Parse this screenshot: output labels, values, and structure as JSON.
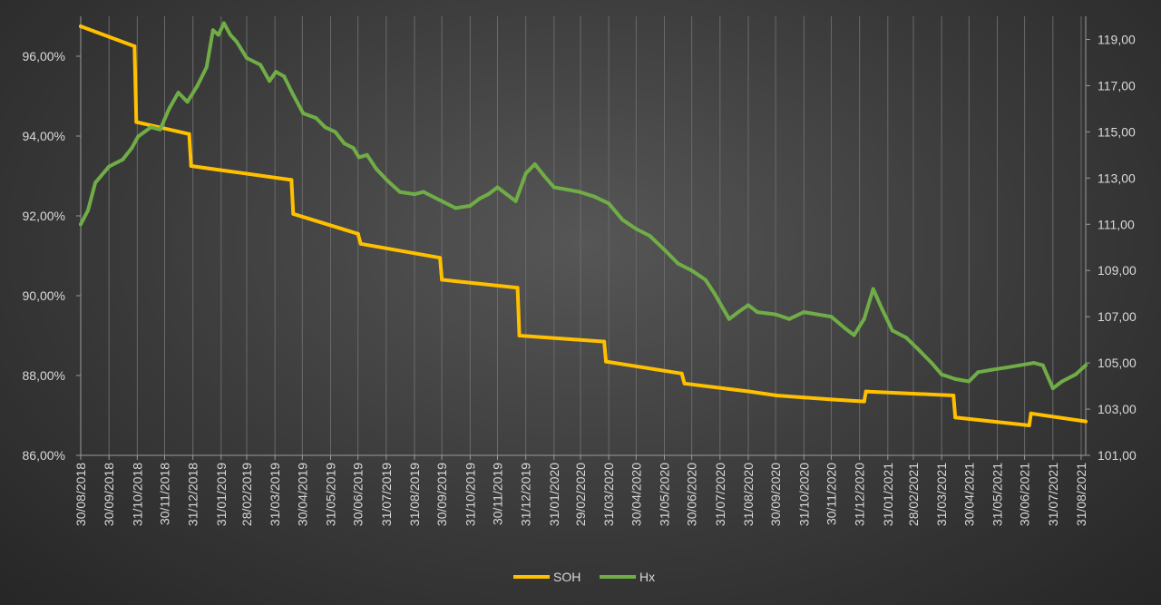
{
  "chart_data": {
    "type": "line",
    "title": "",
    "legend_position": "bottom",
    "grid": "vertical gridlines at each month",
    "x_start": "30/08/2018",
    "x_end": "05/09/2021",
    "x_tick_labels": [
      "30/08/2018",
      "30/09/2018",
      "31/10/2018",
      "30/11/2018",
      "31/12/2018",
      "31/01/2019",
      "28/02/2019",
      "31/03/2019",
      "30/04/2019",
      "31/05/2019",
      "30/06/2019",
      "31/07/2019",
      "31/08/2019",
      "30/09/2019",
      "31/10/2019",
      "30/11/2019",
      "31/12/2019",
      "31/01/2020",
      "29/02/2020",
      "31/03/2020",
      "30/04/2020",
      "31/05/2020",
      "30/06/2020",
      "31/07/2020",
      "31/08/2020",
      "30/09/2020",
      "31/10/2020",
      "30/11/2020",
      "31/12/2020",
      "31/01/2021",
      "28/02/2021",
      "31/03/2021",
      "30/04/2021",
      "31/05/2021",
      "30/06/2021",
      "31/07/2021",
      "31/08/2021"
    ],
    "y_left": {
      "min": 86,
      "max": 97,
      "ticks": [
        86,
        88,
        90,
        92,
        94,
        96
      ],
      "tick_labels": [
        "86,00%",
        "88,00%",
        "90,00%",
        "92,00%",
        "94,00%",
        "96,00%"
      ]
    },
    "y_right": {
      "min": 101,
      "max": 120,
      "ticks": [
        101,
        103,
        105,
        107,
        109,
        111,
        113,
        115,
        117,
        119
      ],
      "tick_labels": [
        "101,00",
        "103,00",
        "105,00",
        "107,00",
        "109,00",
        "111,00",
        "113,00",
        "115,00",
        "117,00",
        "119,00"
      ]
    },
    "series": [
      {
        "name": "SOH",
        "axis": "left",
        "color": "#ffc000",
        "points": [
          [
            "30/08/2018",
            96.75
          ],
          [
            "28/10/2018",
            96.25
          ],
          [
            "30/10/2018",
            94.35
          ],
          [
            "27/12/2018",
            94.05
          ],
          [
            "29/12/2018",
            93.25
          ],
          [
            "18/04/2019",
            92.9
          ],
          [
            "20/04/2019",
            92.05
          ],
          [
            "30/06/2019",
            91.55
          ],
          [
            "03/07/2019",
            91.3
          ],
          [
            "28/09/2019",
            90.95
          ],
          [
            "30/09/2019",
            90.4
          ],
          [
            "22/12/2019",
            90.2
          ],
          [
            "24/12/2019",
            89.0
          ],
          [
            "26/03/2020",
            88.85
          ],
          [
            "28/03/2020",
            88.35
          ],
          [
            "19/06/2020",
            88.05
          ],
          [
            "22/06/2020",
            87.8
          ],
          [
            "01/09/2020",
            87.6
          ],
          [
            "01/10/2020",
            87.5
          ],
          [
            "31/10/2020",
            87.45
          ],
          [
            "30/11/2020",
            87.4
          ],
          [
            "05/01/2021",
            87.35
          ],
          [
            "07/01/2021",
            87.6
          ],
          [
            "13/04/2021",
            87.5
          ],
          [
            "15/04/2021",
            86.95
          ],
          [
            "05/07/2021",
            86.75
          ],
          [
            "07/07/2021",
            87.05
          ],
          [
            "05/09/2021",
            86.85
          ]
        ]
      },
      {
        "name": "Hx",
        "axis": "right",
        "color": "#70ad47",
        "points": [
          [
            "30/08/2018",
            111.0
          ],
          [
            "07/09/2018",
            111.6
          ],
          [
            "15/09/2018",
            112.8
          ],
          [
            "30/09/2018",
            113.5
          ],
          [
            "15/10/2018",
            113.8
          ],
          [
            "25/10/2018",
            114.3
          ],
          [
            "01/11/2018",
            114.8
          ],
          [
            "15/11/2018",
            115.2
          ],
          [
            "25/11/2018",
            115.1
          ],
          [
            "05/12/2018",
            116.0
          ],
          [
            "15/12/2018",
            116.7
          ],
          [
            "25/12/2018",
            116.3
          ],
          [
            "05/01/2019",
            117.0
          ],
          [
            "15/01/2019",
            117.8
          ],
          [
            "22/01/2019",
            119.4
          ],
          [
            "28/01/2019",
            119.2
          ],
          [
            "03/02/2019",
            119.7
          ],
          [
            "10/02/2019",
            119.2
          ],
          [
            "17/02/2019",
            118.9
          ],
          [
            "28/02/2019",
            118.2
          ],
          [
            "15/03/2019",
            117.9
          ],
          [
            "25/03/2019",
            117.2
          ],
          [
            "01/04/2019",
            117.6
          ],
          [
            "10/04/2019",
            117.4
          ],
          [
            "20/04/2019",
            116.6
          ],
          [
            "01/05/2019",
            115.8
          ],
          [
            "15/05/2019",
            115.6
          ],
          [
            "25/05/2019",
            115.2
          ],
          [
            "05/06/2019",
            115.0
          ],
          [
            "15/06/2019",
            114.5
          ],
          [
            "25/06/2019",
            114.3
          ],
          [
            "01/07/2019",
            113.9
          ],
          [
            "10/07/2019",
            114.0
          ],
          [
            "20/07/2019",
            113.4
          ],
          [
            "01/08/2019",
            112.9
          ],
          [
            "15/08/2019",
            112.4
          ],
          [
            "31/08/2019",
            112.3
          ],
          [
            "10/09/2019",
            112.4
          ],
          [
            "30/09/2019",
            112.0
          ],
          [
            "15/10/2019",
            111.7
          ],
          [
            "31/10/2019",
            111.8
          ],
          [
            "10/11/2019",
            112.1
          ],
          [
            "20/11/2019",
            112.3
          ],
          [
            "30/11/2019",
            112.6
          ],
          [
            "10/12/2019",
            112.3
          ],
          [
            "20/12/2019",
            112.0
          ],
          [
            "31/12/2019",
            113.2
          ],
          [
            "10/01/2020",
            113.6
          ],
          [
            "20/01/2020",
            113.1
          ],
          [
            "31/01/2020",
            112.6
          ],
          [
            "15/02/2020",
            112.5
          ],
          [
            "28/02/2020",
            112.4
          ],
          [
            "15/03/2020",
            112.2
          ],
          [
            "31/03/2020",
            111.9
          ],
          [
            "15/04/2020",
            111.2
          ],
          [
            "30/04/2020",
            110.8
          ],
          [
            "15/05/2020",
            110.5
          ],
          [
            "31/05/2020",
            109.9
          ],
          [
            "15/06/2020",
            109.3
          ],
          [
            "30/06/2020",
            109.0
          ],
          [
            "15/07/2020",
            108.6
          ],
          [
            "25/07/2020",
            108.0
          ],
          [
            "10/08/2020",
            106.9
          ],
          [
            "20/08/2020",
            107.2
          ],
          [
            "31/08/2020",
            107.5
          ],
          [
            "10/09/2020",
            107.2
          ],
          [
            "30/09/2020",
            107.1
          ],
          [
            "15/10/2020",
            106.9
          ],
          [
            "31/10/2020",
            107.2
          ],
          [
            "15/11/2020",
            107.1
          ],
          [
            "30/11/2020",
            107.0
          ],
          [
            "15/12/2020",
            106.5
          ],
          [
            "25/12/2020",
            106.2
          ],
          [
            "05/01/2021",
            106.9
          ],
          [
            "15/01/2021",
            108.2
          ],
          [
            "25/01/2021",
            107.3
          ],
          [
            "05/02/2021",
            106.4
          ],
          [
            "20/02/2021",
            106.1
          ],
          [
            "05/03/2021",
            105.6
          ],
          [
            "20/03/2021",
            105.0
          ],
          [
            "31/03/2021",
            104.5
          ],
          [
            "15/04/2021",
            104.3
          ],
          [
            "30/04/2021",
            104.2
          ],
          [
            "10/05/2021",
            104.6
          ],
          [
            "25/05/2021",
            104.7
          ],
          [
            "10/06/2021",
            104.8
          ],
          [
            "25/06/2021",
            104.9
          ],
          [
            "10/07/2021",
            105.0
          ],
          [
            "20/07/2021",
            104.9
          ],
          [
            "31/07/2021",
            103.9
          ],
          [
            "10/08/2021",
            104.2
          ],
          [
            "25/08/2021",
            104.5
          ],
          [
            "05/09/2021",
            104.9
          ]
        ]
      }
    ]
  }
}
